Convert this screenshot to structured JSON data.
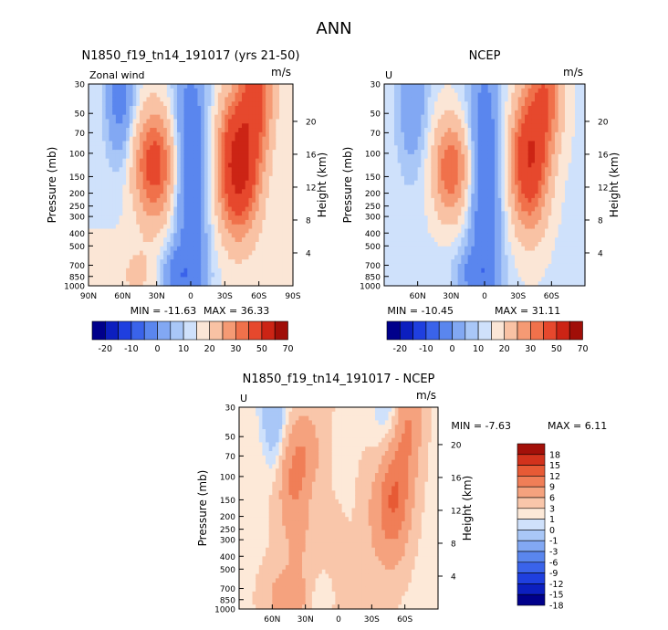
{
  "page": {
    "title": "ANN"
  },
  "palette": {
    "full": [
      "#00008b",
      "#0c1fbf",
      "#1f3fdf",
      "#3a63ea",
      "#5a86ee",
      "#82a8f3",
      "#a9c7f7",
      "#cfe1fb",
      "#fbe6d6",
      "#f9c2a4",
      "#f59a74",
      "#f0714b",
      "#e6482d",
      "#cc2415",
      "#a00e08"
    ],
    "diff": [
      "#00008b",
      "#0c1fbf",
      "#1f3fdf",
      "#3a63ea",
      "#5a86ee",
      "#82a8f3",
      "#a9c7f7",
      "#cfe1fb",
      "#fde9d8",
      "#f9c6aa",
      "#f5a27e",
      "#f07e57",
      "#e75a35",
      "#d2321c",
      "#a31009"
    ]
  },
  "chart_data": [
    {
      "id": "model",
      "type": "contour",
      "title": "N1850_f19_tn14_191017 (yrs 21-50)",
      "variable_label": "Zonal wind",
      "units": "m/s",
      "ylabel": "Pressure (mb)",
      "y2label": "Height (km)",
      "yticks": [
        30,
        50,
        70,
        100,
        150,
        200,
        250,
        300,
        400,
        500,
        700,
        850,
        1000
      ],
      "y2ticks": [
        4,
        8,
        12,
        16,
        20
      ],
      "xticks": [
        "90N",
        "60N",
        "30N",
        "0",
        "30S",
        "60S",
        "90S"
      ],
      "ylim": [
        1000,
        30
      ],
      "xlim": [
        90,
        -90
      ],
      "min_label": "MIN = -11.63",
      "max_label": "MAX = 36.33",
      "colorbar_levels": [
        "-20",
        "-10",
        "0",
        "10",
        "20",
        "30",
        "50",
        "70"
      ]
    },
    {
      "id": "obs",
      "type": "contour",
      "title": "NCEP",
      "variable_label": "U",
      "units": "m/s",
      "ylabel": "Pressure (mb)",
      "y2label": "Height (km)",
      "yticks": [
        30,
        50,
        70,
        100,
        150,
        200,
        250,
        300,
        400,
        500,
        700,
        850,
        1000
      ],
      "y2ticks": [
        4,
        8,
        12,
        16,
        20
      ],
      "xticks": [
        "60N",
        "30N",
        "0",
        "30S",
        "60S"
      ],
      "ylim": [
        1000,
        30
      ],
      "xlim": [
        90,
        -90
      ],
      "min_label": "MIN = -10.45",
      "max_label": "MAX = 31.11",
      "colorbar_levels": [
        "-20",
        "-10",
        "0",
        "10",
        "20",
        "30",
        "50",
        "70"
      ]
    },
    {
      "id": "diff",
      "type": "contour",
      "title": "N1850_f19_tn14_191017 - NCEP",
      "variable_label": "U",
      "units": "m/s",
      "ylabel": "Pressure (mb)",
      "y2label": "Height (km)",
      "yticks": [
        30,
        50,
        70,
        100,
        150,
        200,
        250,
        300,
        400,
        500,
        700,
        850,
        1000
      ],
      "y2ticks": [
        4,
        8,
        12,
        16,
        20
      ],
      "xticks": [
        "60N",
        "30N",
        "0",
        "30S",
        "60S"
      ],
      "ylim": [
        1000,
        30
      ],
      "xlim": [
        90,
        -90
      ],
      "min_label": "MIN = -7.63",
      "max_label": "MAX = 6.11",
      "colorbar_levels": [
        "18",
        "15",
        "12",
        "9",
        "6",
        "3",
        "1",
        "0",
        "-1",
        "-3",
        "-6",
        "-9",
        "-12",
        "-15",
        "-18"
      ]
    }
  ]
}
